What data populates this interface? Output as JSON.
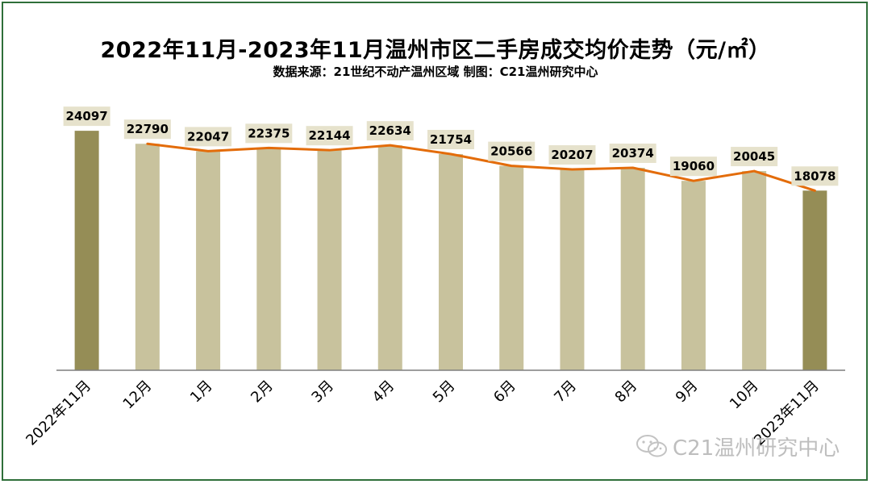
{
  "title": "2022年11月-2023年11月温州市区二手房成交均价走势（元/㎡）",
  "subtitle": "数据来源：21世纪不动产温州区域  制图：C21温州研究中心",
  "watermark": {
    "text": "C21温州研究中心",
    "icon": "wechat-icon"
  },
  "colors": {
    "bar_highlight": "#958d56",
    "bar_normal": "#c8c29d",
    "line": "#e36c0a",
    "label_box": "#e6e2cc",
    "axis": "#7f7f7f"
  },
  "chart_data": {
    "type": "bar",
    "categories": [
      "2022年11月",
      "12月",
      "1月",
      "2月",
      "3月",
      "4月",
      "5月",
      "6月",
      "7月",
      "8月",
      "9月",
      "10月",
      "2023年11月"
    ],
    "series": [
      {
        "values": [
          24097,
          22790,
          22047,
          22375,
          22144,
          22634,
          21754,
          20566,
          20207,
          20374,
          19060,
          20045,
          18078
        ]
      }
    ],
    "overlay_line": {
      "type": "line",
      "from_category": "12月",
      "to_category": "2023年11月"
    },
    "highlight_categories": [
      "2022年11月",
      "2023年11月"
    ],
    "ylim": [
      0,
      25500
    ],
    "legend": "none",
    "grid": false
  }
}
